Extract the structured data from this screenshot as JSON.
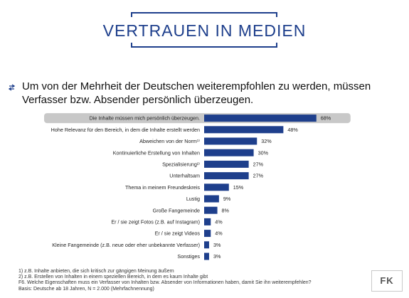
{
  "header": {
    "title": "VERTRAUEN IN MEDIEN",
    "headline": "Um von der Mehrheit der Deutschen weiterempfohlen zu werden, müssen Verfasser bzw. Absender persönlich überzeugen."
  },
  "chart_data": {
    "type": "bar",
    "orientation": "horizontal",
    "categories": [
      "Die Inhalte müssen mich persönlich überzeugen.",
      "Hohe Relevanz für den Bereich, in dem die Inhalte erstellt werden",
      "Abweichen von der Norm¹⁾",
      "Kontinuierliche Erstellung von Inhalten",
      "Spezialisierung²⁾",
      "Unterhaltsam",
      "Thema in meinem Freundeskreis",
      "Lustig",
      "Große Fangemeinde",
      "Er / sie zeigt Fotos (z.B. auf Instagram)",
      "Er / sie zeigt Videos",
      "Kleine Fangemeinde (z.B. neue oder eher unbekannte Verfasser)",
      "Sonstiges"
    ],
    "values": [
      68,
      48,
      32,
      30,
      27,
      27,
      15,
      9,
      8,
      4,
      4,
      3,
      3
    ],
    "value_labels": [
      "68%",
      "48%",
      "32%",
      "30%",
      "27%",
      "27%",
      "15%",
      "9%",
      "8%",
      "4%",
      "4%",
      "3%",
      "3%"
    ],
    "highlighted_index": 0,
    "xlim": [
      0,
      100
    ],
    "bar_color": "#1e3f8c",
    "highlight_color": "#c8c8c8"
  },
  "footnotes": [
    "1) z.B. Inhalte anbieten, die sich kritisch zur gängigen Meinung äußern",
    "2) z.B. Erstellen von Inhalten in einem speziellen Bereich, in dem es kaum Inhalte gibt",
    "F6. Welche Eigenschaften muss ein Verfasser von Inhalten bzw. Absender von Informationen haben, damit Sie ihn weiterempfehlen?",
    "Basis: Deutsche ab 18 Jahren, N = 2.000 (Mehrfachnennung)"
  ],
  "logo": {
    "text": "FK"
  },
  "colors": {
    "accent": "#1e3f8c"
  }
}
